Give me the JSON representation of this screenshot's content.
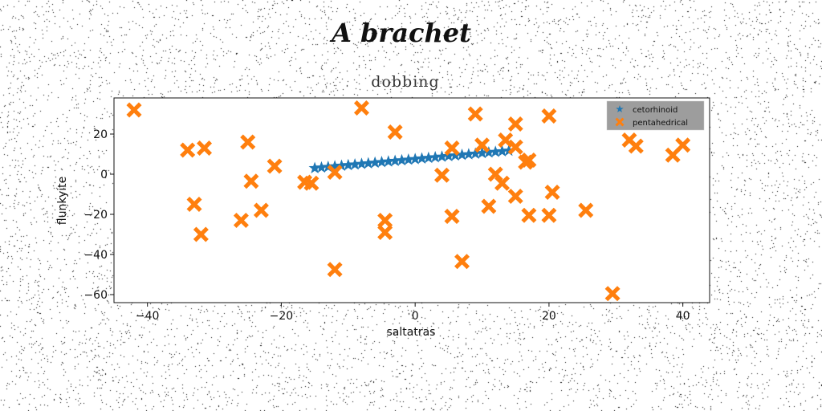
{
  "suptitle": "A brachet",
  "chart_data": {
    "type": "scatter",
    "title": "dobbing",
    "xlabel": "saltatras",
    "ylabel": "flunkyite",
    "xlim": [
      -45,
      44
    ],
    "ylim": [
      -64,
      38
    ],
    "xticks": [
      -40,
      -20,
      0,
      20,
      40
    ],
    "yticks": [
      -60,
      -40,
      -20,
      0,
      20
    ],
    "grid": false,
    "legend": {
      "placement": "top-right"
    },
    "series": [
      {
        "name": "cetorhinoid",
        "marker": "star",
        "color": "#1f77b4",
        "x": [
          -15.0,
          -14.0,
          -13.0,
          -12.0,
          -11.0,
          -10.0,
          -9.0,
          -8.0,
          -7.0,
          -6.0,
          -5.0,
          -4.0,
          -3.0,
          -2.0,
          -1.0,
          0.0,
          1.0,
          2.0,
          3.0,
          4.0,
          5.0,
          6.0,
          7.0,
          8.0,
          9.0,
          10.0,
          11.0,
          12.0,
          13.0,
          14.0
        ],
        "y": [
          3.0,
          3.3,
          3.6,
          3.9,
          4.2,
          4.5,
          4.8,
          5.1,
          5.4,
          5.7,
          6.0,
          6.3,
          6.6,
          6.9,
          7.2,
          7.5,
          7.8,
          8.1,
          8.4,
          8.7,
          9.0,
          9.3,
          9.6,
          9.9,
          10.2,
          10.5,
          10.8,
          11.1,
          11.4,
          11.7
        ]
      },
      {
        "name": "pentahedrical",
        "marker": "X",
        "color": "#ff7f0e",
        "x": [
          -42,
          -34,
          -31.5,
          -33,
          -32,
          -26,
          -25,
          -24.5,
          -23,
          -21,
          -16.5,
          -15.5,
          -12,
          -12,
          -8,
          -4.5,
          -4.5,
          -3,
          4,
          5.5,
          5.5,
          7,
          9,
          10,
          11,
          12,
          13,
          13.5,
          15,
          15,
          15,
          16.5,
          17,
          17,
          20,
          20,
          20.5,
          25.5,
          29.5,
          32,
          33,
          38.5,
          40
        ],
        "y": [
          32,
          12,
          13,
          -15,
          -30,
          -23,
          16,
          -3.5,
          -18,
          4,
          -4,
          -4.5,
          1,
          -47.5,
          33,
          -23,
          -29,
          21,
          -0.5,
          13,
          -21,
          -43.5,
          30,
          14.5,
          -16,
          0,
          -4.5,
          17,
          25,
          13.5,
          -11,
          6,
          7,
          -20.5,
          29,
          -20.5,
          -9,
          -18,
          -59.5,
          17,
          14,
          9.5,
          14.5
        ]
      }
    ]
  }
}
